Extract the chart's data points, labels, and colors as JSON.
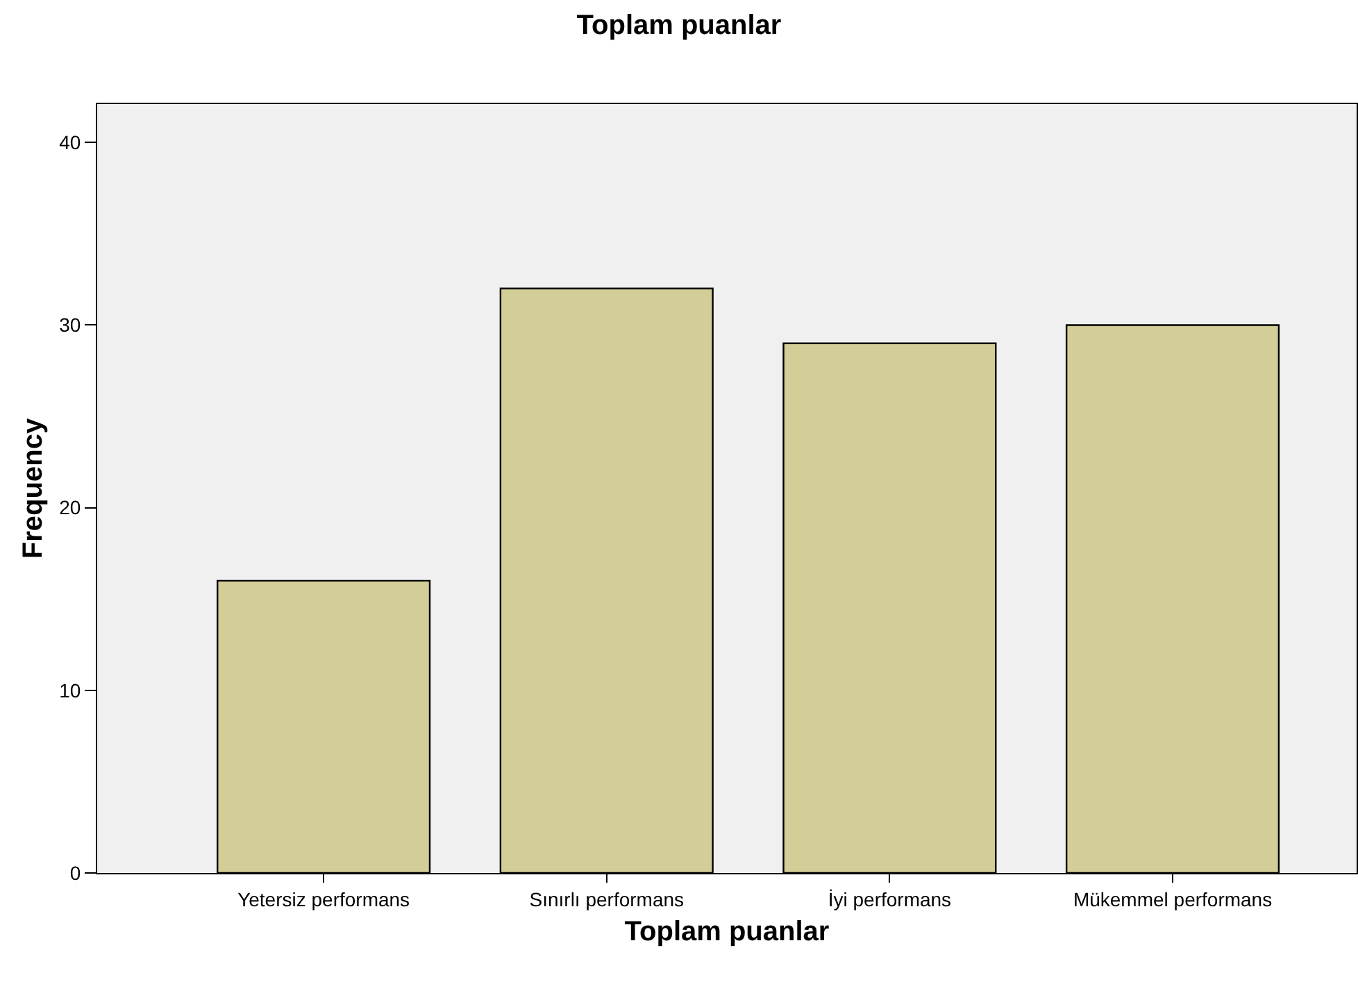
{
  "chart_data": {
    "type": "bar",
    "title": "Toplam puanlar",
    "xlabel": "Toplam puanlar",
    "ylabel": "Frequency",
    "categories": [
      "Yetersiz performans",
      "Sınırlı performans",
      "İyi performans",
      "Mükemmel performans"
    ],
    "values": [
      16,
      32,
      29,
      30
    ],
    "color": "#d3ce97",
    "ylim": [
      0,
      42.1
    ],
    "yticks": [
      0,
      10,
      20,
      30,
      40
    ],
    "grid": false,
    "legend": false
  }
}
